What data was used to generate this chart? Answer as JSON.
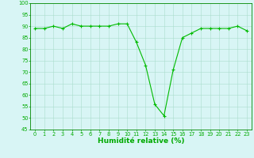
{
  "x": [
    0,
    1,
    2,
    3,
    4,
    5,
    6,
    7,
    8,
    9,
    10,
    11,
    12,
    13,
    14,
    15,
    16,
    17,
    18,
    19,
    20,
    21,
    22,
    23
  ],
  "y": [
    89,
    89,
    90,
    89,
    91,
    90,
    90,
    90,
    90,
    91,
    91,
    83,
    73,
    56,
    51,
    71,
    85,
    87,
    89,
    89,
    89,
    89,
    90,
    88
  ],
  "line_color": "#00bb00",
  "marker": "+",
  "bg_color": "#d8f5f5",
  "grid_color": "#aaddcc",
  "xlabel": "Humidité relative (%)",
  "xlabel_color": "#00aa00",
  "ylim": [
    45,
    100
  ],
  "xlim_min": -0.5,
  "xlim_max": 23.5,
  "yticks": [
    45,
    50,
    55,
    60,
    65,
    70,
    75,
    80,
    85,
    90,
    95,
    100
  ],
  "xticks": [
    0,
    1,
    2,
    3,
    4,
    5,
    6,
    7,
    8,
    9,
    10,
    11,
    12,
    13,
    14,
    15,
    16,
    17,
    18,
    19,
    20,
    21,
    22,
    23
  ],
  "tick_color": "#00aa00",
  "tick_fontsize": 4.8,
  "xlabel_fontsize": 6.5,
  "axis_color": "#008800",
  "markersize": 3,
  "linewidth": 0.8
}
